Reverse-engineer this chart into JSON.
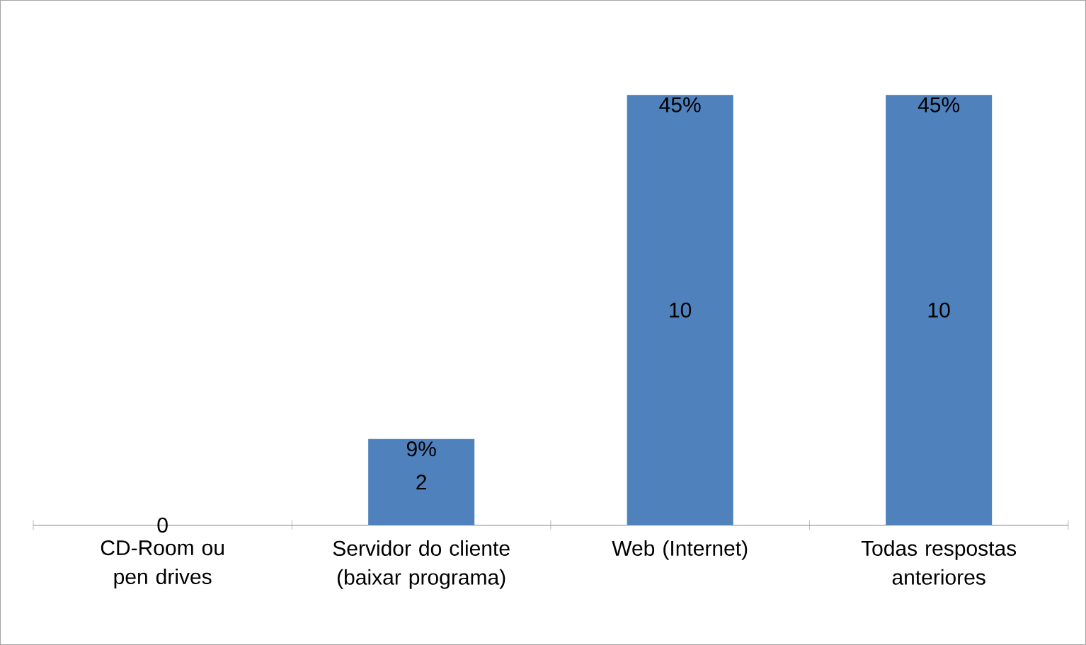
{
  "chart_data": {
    "type": "bar",
    "categories": [
      "CD-Room ou pen drives",
      "Servidor do cliente (baixar programa)",
      "Web (Internet)",
      "Todas respostas anteriores"
    ],
    "values": [
      0,
      2,
      10,
      10
    ],
    "color": "#4f81bd",
    "data_labels": true,
    "annotations": [
      {
        "text": "9%",
        "x": "Servidor do cliente (baixar programa)",
        "y": 2
      },
      {
        "text": "45%",
        "x": "Web (Internet)",
        "y": 10
      },
      {
        "text": "45%",
        "x": "Todas respostas anteriores",
        "y": 10
      }
    ]
  }
}
